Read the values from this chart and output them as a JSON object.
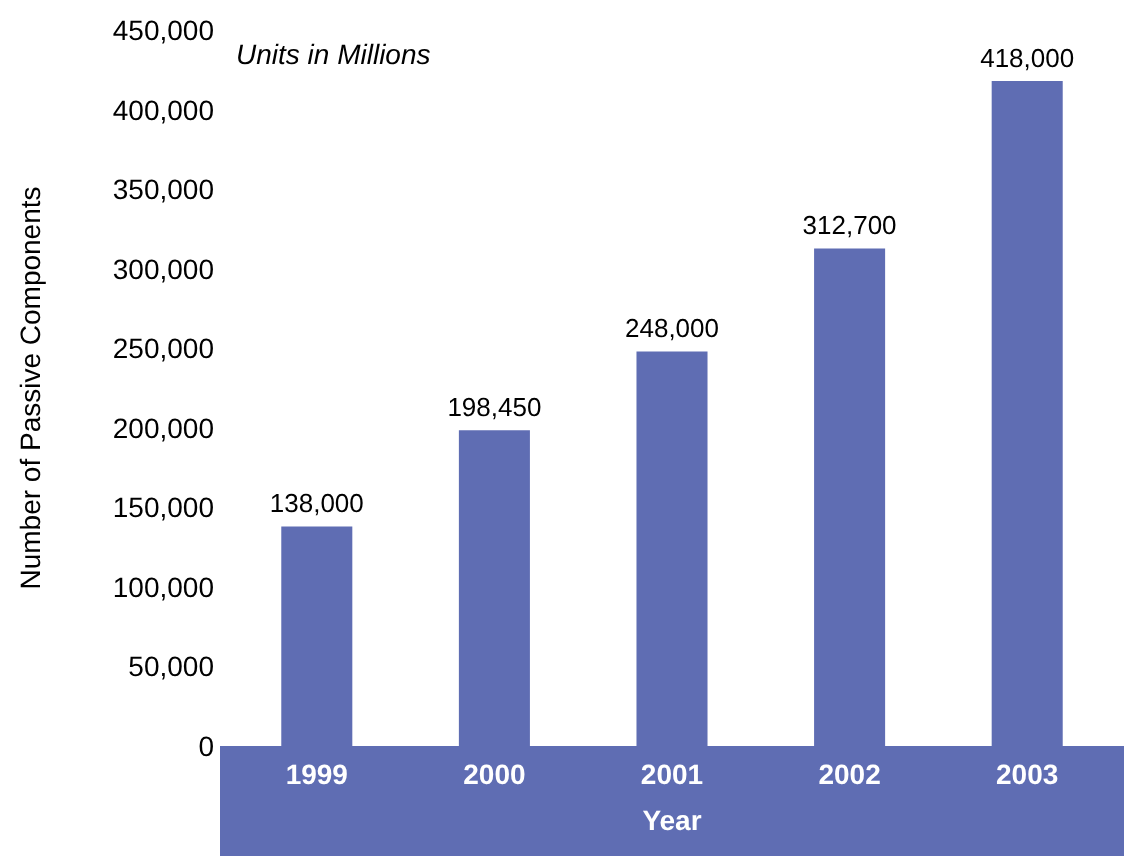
{
  "chart_data": {
    "type": "bar",
    "xlabel": "Year",
    "ylabel": "Number of Passive Components",
    "annotations": [
      "Units in Millions"
    ],
    "categories": [
      "1999",
      "2000",
      "2001",
      "2002",
      "2003"
    ],
    "values": [
      138000,
      198450,
      248000,
      312700,
      418000
    ],
    "value_labels": [
      "138,000",
      "198,450",
      "248,000",
      "312,700",
      "418,000"
    ],
    "color": "#5f6db3",
    "ylim": [
      0,
      450000
    ],
    "yticks": [
      0,
      {
        "value": 50000,
        "label": "50,000"
      },
      {
        "value": 100000,
        "label": "100,000"
      },
      {
        "value": 150000,
        "label": "150,000"
      },
      {
        "value": 200000,
        "label": "200,000"
      },
      {
        "value": 250000,
        "label": "250,000"
      },
      {
        "value": 300000,
        "label": "300,000"
      },
      {
        "value": 350000,
        "label": "350,000"
      },
      {
        "value": 400000,
        "label": "400,000"
      },
      {
        "value": 450000,
        "label": "450,000"
      }
    ]
  }
}
